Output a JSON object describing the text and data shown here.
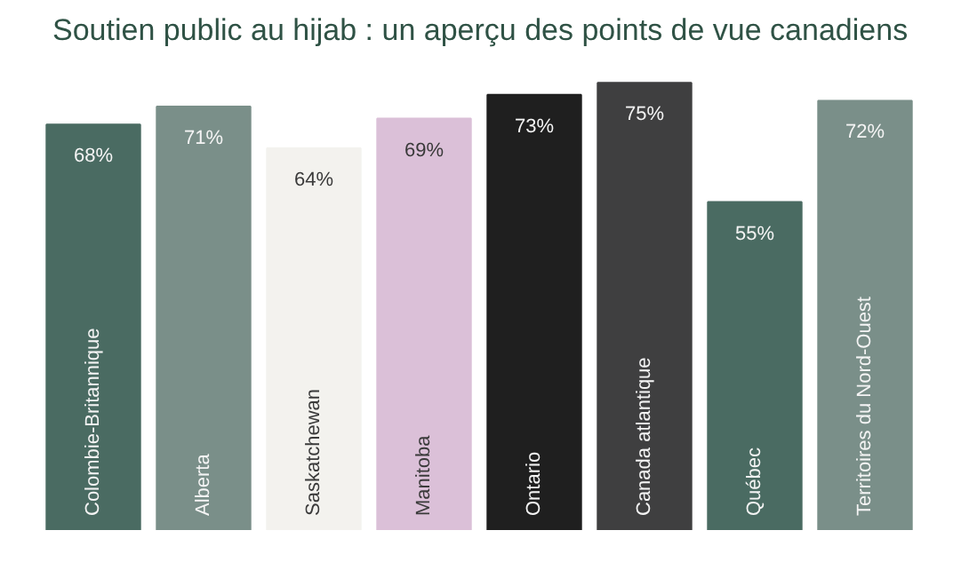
{
  "chart_data": {
    "type": "bar",
    "title": "Soutien public au hijab : un aperçu des points de vue canadiens",
    "categories": [
      "Colombie-Britannique",
      "Alberta",
      "Saskatchewan",
      "Manitoba",
      "Ontario",
      "Canada atlantique",
      "Québec",
      "Territoires du Nord-Ouest"
    ],
    "values": [
      68,
      71,
      64,
      69,
      73,
      75,
      55,
      72
    ],
    "value_labels": [
      "68%",
      "71%",
      "64%",
      "69%",
      "73%",
      "75%",
      "55%",
      "72%"
    ],
    "colors": [
      "#4a6b62",
      "#7a8f89",
      "#f3f2ee",
      "#dbc0d8",
      "#1f1f1f",
      "#3f3f40",
      "#4a6b62",
      "#7a8f89"
    ]
  }
}
